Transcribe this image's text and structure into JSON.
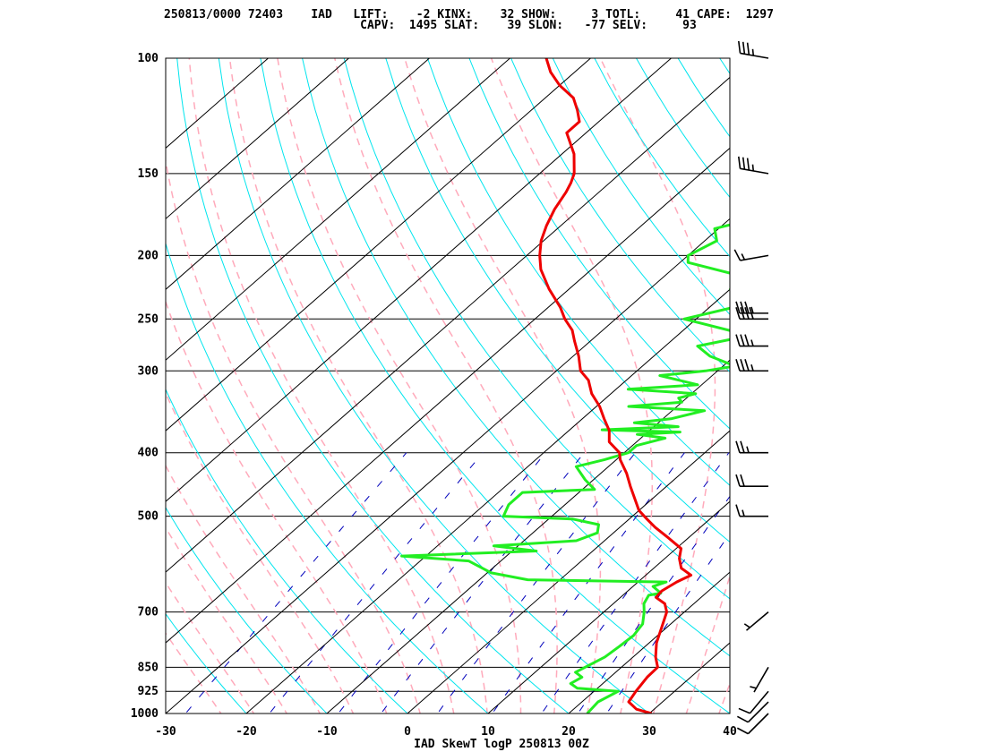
{
  "header": {
    "line1": "250813/0000 72403    IAD   LIFT:    -2 KINX:    32 SHOW:     3 TOTL:     41 CAPE:  1297",
    "line2": "                            CAPV:  1495 SLAT:    39 SLON:   -77 SELV:     93"
  },
  "colors": {
    "temperature": "#ee0000",
    "dewpoint": "#22ee22",
    "isotherm": "#000000",
    "dry_adiabat": "#00e5ee",
    "moist_adiabat": "#ffaabb",
    "mixing_ratio": "#0000bb",
    "isobar": "#000000"
  },
  "chart_data": {
    "type": "skewt",
    "title": "IAD SkewT logP 250813 00Z",
    "station": "IAD",
    "x_axis": {
      "label": "temperature",
      "range": [
        -30,
        40
      ],
      "ticks": [
        "-30",
        "-20",
        "-10",
        "0",
        "10",
        "20",
        "30",
        "40"
      ]
    },
    "y_axis": {
      "label": "pressure",
      "scale": "log",
      "range": [
        1000,
        100
      ],
      "ticks": [
        "1000",
        "925",
        "850",
        "700",
        "500",
        "400",
        "300",
        "250",
        "200",
        "150",
        "100"
      ]
    },
    "indices": {
      "LIFT": -2,
      "KINX": 32,
      "SHOW": 3,
      "TOTL": 41,
      "CAPE": 1297,
      "CAPV": 1495,
      "SLAT": 39,
      "SLON": -77,
      "SELV": 93
    },
    "temperature_profile": [
      [
        1000,
        30.3
      ],
      [
        985,
        27.8
      ],
      [
        960,
        25.8
      ],
      [
        925,
        25.2
      ],
      [
        880,
        24.6
      ],
      [
        850,
        24.5
      ],
      [
        820,
        22.8
      ],
      [
        780,
        20.9
      ],
      [
        740,
        19.4
      ],
      [
        700,
        17.8
      ],
      [
        680,
        16.4
      ],
      [
        665,
        14.4
      ],
      [
        650,
        14.2
      ],
      [
        630,
        14.8
      ],
      [
        615,
        15.6
      ],
      [
        600,
        13.4
      ],
      [
        580,
        11.8
      ],
      [
        560,
        10.6
      ],
      [
        540,
        7.6
      ],
      [
        520,
        4.4
      ],
      [
        505,
        2.2
      ],
      [
        490,
        0.0
      ],
      [
        470,
        -2.2
      ],
      [
        450,
        -4.5
      ],
      [
        430,
        -6.8
      ],
      [
        410,
        -9.5
      ],
      [
        400,
        -10.6
      ],
      [
        385,
        -13.4
      ],
      [
        370,
        -15.0
      ],
      [
        355,
        -17.3
      ],
      [
        340,
        -19.6
      ],
      [
        325,
        -22.4
      ],
      [
        310,
        -24.7
      ],
      [
        300,
        -27.0
      ],
      [
        285,
        -29.3
      ],
      [
        270,
        -32.0
      ],
      [
        260,
        -33.8
      ],
      [
        250,
        -36.3
      ],
      [
        240,
        -38.5
      ],
      [
        225,
        -42.5
      ],
      [
        210,
        -46.3
      ],
      [
        200,
        -48.4
      ],
      [
        190,
        -50.3
      ],
      [
        180,
        -51.8
      ],
      [
        170,
        -53.1
      ],
      [
        160,
        -54.1
      ],
      [
        155,
        -54.8
      ],
      [
        150,
        -55.7
      ],
      [
        140,
        -58.5
      ],
      [
        130,
        -62.4
      ],
      [
        125,
        -62.4
      ],
      [
        120,
        -64.3
      ],
      [
        115,
        -66.5
      ],
      [
        110,
        -70.0
      ],
      [
        105,
        -73.0
      ],
      [
        100,
        -75.5
      ]
    ],
    "dewpoint_profile": [
      [
        1000,
        22.3
      ],
      [
        960,
        22.0
      ],
      [
        925,
        23.0
      ],
      [
        915,
        17.5
      ],
      [
        900,
        16.0
      ],
      [
        880,
        16.5
      ],
      [
        865,
        15.0
      ],
      [
        850,
        15.5
      ],
      [
        820,
        16.5
      ],
      [
        790,
        16.8
      ],
      [
        760,
        17.0
      ],
      [
        730,
        16.5
      ],
      [
        700,
        15.0
      ],
      [
        680,
        13.8
      ],
      [
        660,
        13.2
      ],
      [
        655,
        14.4
      ],
      [
        640,
        12.5
      ],
      [
        630,
        13.5
      ],
      [
        625,
        -4.0
      ],
      [
        610,
        -9.5
      ],
      [
        585,
        -14.0
      ],
      [
        575,
        -23.0
      ],
      [
        565,
        -7.0
      ],
      [
        555,
        -13.0
      ],
      [
        545,
        -3.5
      ],
      [
        530,
        -2.0
      ],
      [
        515,
        -3.0
      ],
      [
        505,
        -7.0
      ],
      [
        500,
        -16.0
      ],
      [
        480,
        -17.0
      ],
      [
        460,
        -17.0
      ],
      [
        455,
        -8.5
      ],
      [
        440,
        -11.0
      ],
      [
        420,
        -14.0
      ],
      [
        410,
        -11.5
      ],
      [
        400,
        -9.5
      ],
      [
        390,
        -9.5
      ],
      [
        380,
        -7.0
      ],
      [
        375,
        -11.0
      ],
      [
        372,
        -6.0
      ],
      [
        369,
        -16.0
      ],
      [
        365,
        -7.0
      ],
      [
        360,
        -13.0
      ],
      [
        355,
        -9.0
      ],
      [
        345,
        -6.0
      ],
      [
        340,
        -16.0
      ],
      [
        335,
        -10.0
      ],
      [
        330,
        -11.0
      ],
      [
        325,
        -9.5
      ],
      [
        320,
        -18.5
      ],
      [
        315,
        -10.5
      ],
      [
        305,
        -16.5
      ],
      [
        300,
        -11.5
      ],
      [
        295,
        -8.5
      ],
      [
        285,
        -13.0
      ],
      [
        275,
        -16.0
      ],
      [
        265,
        -11.0
      ],
      [
        250,
        -21.5
      ],
      [
        240,
        -17.0
      ],
      [
        225,
        -20.0
      ],
      [
        215,
        -20.5
      ],
      [
        205,
        -29.0
      ],
      [
        200,
        -30.0
      ],
      [
        190,
        -28.5
      ],
      [
        182,
        -30.5
      ],
      [
        175,
        -26.5
      ],
      [
        170,
        -26.5
      ],
      [
        162,
        -30.0
      ],
      [
        155,
        -33.5
      ],
      [
        150,
        -33.5
      ],
      [
        140,
        -33.0
      ],
      [
        130,
        -35.5
      ],
      [
        120,
        -38.0
      ],
      [
        110,
        -44.0
      ],
      [
        100,
        -49.0
      ]
    ],
    "wind_barbs_kt": [
      [
        1000,
        225,
        10
      ],
      [
        960,
        225,
        10
      ],
      [
        925,
        220,
        10
      ],
      [
        850,
        210,
        5
      ],
      [
        700,
        230,
        5
      ],
      [
        500,
        270,
        15
      ],
      [
        450,
        270,
        20
      ],
      [
        400,
        270,
        25
      ],
      [
        300,
        270,
        35
      ],
      [
        275,
        270,
        35
      ],
      [
        250,
        270,
        40
      ],
      [
        245,
        270,
        35
      ],
      [
        200,
        260,
        15
      ],
      [
        150,
        280,
        35
      ],
      [
        100,
        280,
        35
      ]
    ]
  }
}
